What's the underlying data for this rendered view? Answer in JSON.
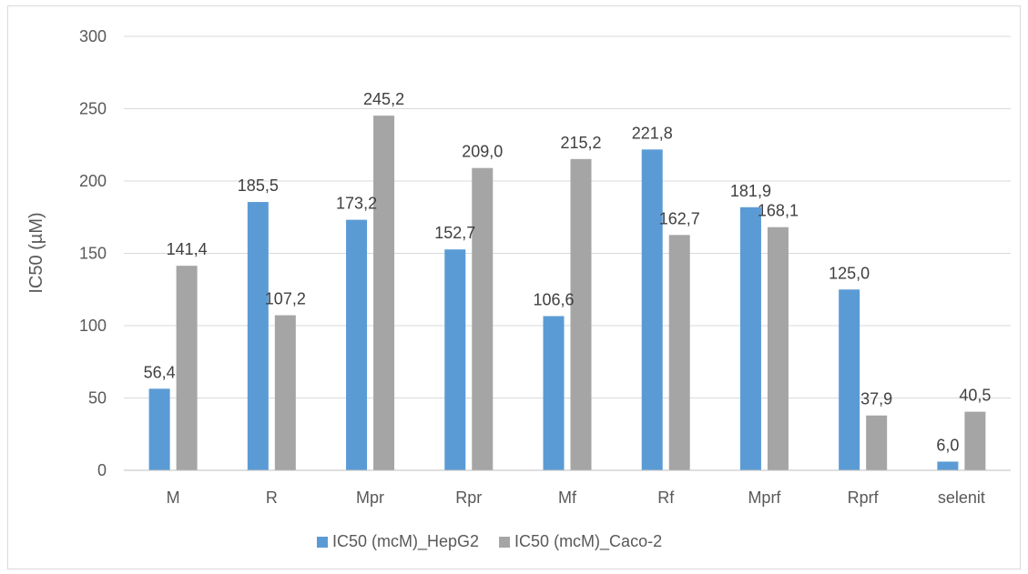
{
  "chart_data": {
    "type": "bar",
    "title": "",
    "xlabel": "",
    "ylabel": "IC50 (µM)",
    "ylim": [
      0,
      300
    ],
    "yticks": [
      0,
      50,
      100,
      150,
      200,
      250,
      300
    ],
    "grid": true,
    "legend_position": "bottom",
    "categories": [
      "M",
      "R",
      "Mpr",
      "Rpr",
      "Mf",
      "Rf",
      "Mprf",
      "Rprf",
      "selenit"
    ],
    "series": [
      {
        "name": "IC50 (mcM)_HepG2",
        "color": "#5b9bd5",
        "values": [
          56.4,
          185.5,
          173.2,
          152.7,
          106.6,
          221.8,
          181.9,
          125.0,
          6.0
        ],
        "labels": [
          "56,4",
          "185,5",
          "173,2",
          "152,7",
          "106,6",
          "221,8",
          "181,9",
          "125,0",
          "6,0"
        ]
      },
      {
        "name": "IC50 (mcM)_Caco-2",
        "color": "#a5a5a5",
        "values": [
          141.4,
          107.2,
          245.2,
          209.0,
          215.2,
          162.7,
          168.1,
          37.9,
          40.5
        ],
        "labels": [
          "141,4",
          "107,2",
          "245,2",
          "209,0",
          "215,2",
          "162,7",
          "168,1",
          "37,9",
          "40,5"
        ]
      }
    ]
  }
}
